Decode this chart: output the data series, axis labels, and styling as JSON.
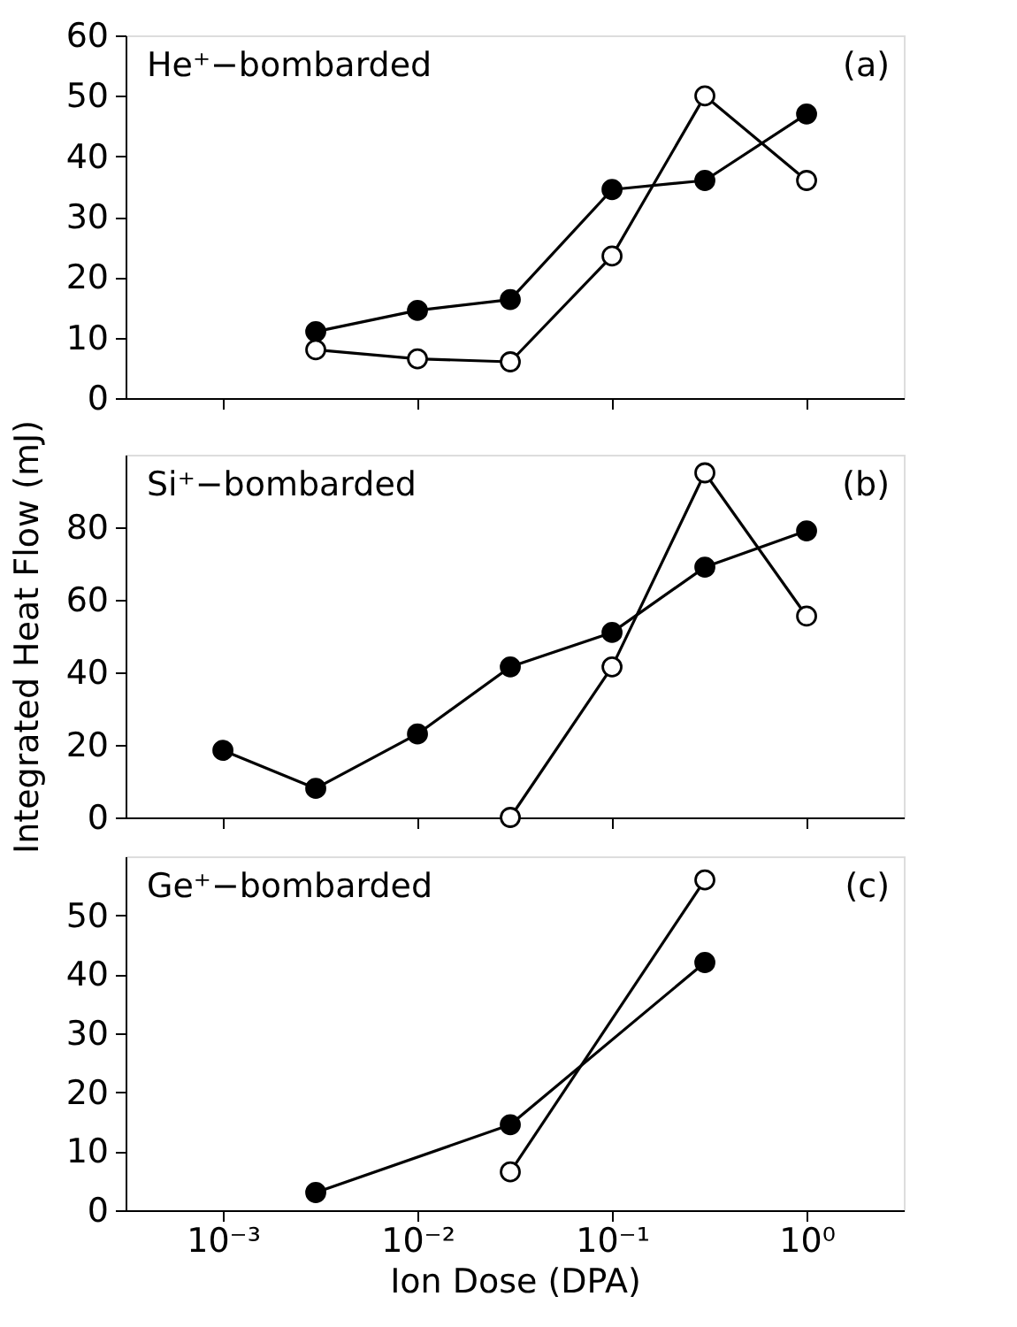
{
  "chart_data": [
    {
      "type": "line",
      "x": [
        0.003,
        0.01,
        0.03,
        0.1,
        0.3,
        1
      ],
      "log": "x",
      "marker": "circle",
      "line_style": "solid",
      "grid": false,
      "tick_labels": "y",
      "series": [
        {
          "color": "#000000",
          "values": [
            11,
            14.5,
            16.3,
            34.5,
            36,
            47
          ]
        },
        {
          "color": "#000000",
          "values": [
            8,
            6.5,
            6,
            23.5,
            50,
            36
          ]
        }
      ],
      "xlim": [
        0.000316,
        3.16
      ],
      "xticks": [
        {
          "value": 0.001,
          "label": null
        },
        {
          "value": 0.01,
          "label": null
        },
        {
          "value": 0.1,
          "label": null
        },
        {
          "value": 1,
          "label": null
        }
      ],
      "ylim": [
        0,
        60
      ],
      "yticks": [
        0,
        10,
        20,
        30,
        40,
        50,
        60
      ],
      "annotations": [
        "He⁺−bombarded",
        "(a)"
      ]
    },
    {
      "type": "line",
      "log": "x",
      "marker": "circle",
      "line_style": "solid",
      "grid": false,
      "tick_labels": "y",
      "ylabel": "Integrated Heat Flow (mJ)",
      "series": [
        {
          "color": "#000000",
          "x": [
            0.001,
            0.003,
            0.01,
            0.03,
            0.1,
            0.3,
            1
          ],
          "values": [
            18.5,
            8,
            23,
            41.5,
            51,
            69,
            79
          ]
        },
        {
          "color": "#000000",
          "x": [
            0.03,
            0.1,
            0.3,
            1
          ],
          "values": [
            0,
            41.5,
            95,
            55.5
          ]
        }
      ],
      "xlim": [
        0.000316,
        3.16
      ],
      "xticks": [
        {
          "value": 0.001,
          "label": null
        },
        {
          "value": 0.01,
          "label": null
        },
        {
          "value": 0.1,
          "label": null
        },
        {
          "value": 1,
          "label": null
        }
      ],
      "ylim": [
        0,
        100
      ],
      "yticks": [
        0,
        20,
        40,
        60,
        80
      ],
      "annotations": [
        "Si⁺−bombarded",
        "(b)"
      ]
    },
    {
      "type": "line",
      "log": "x",
      "marker": "circle",
      "line_style": "solid",
      "grid": false,
      "xlabel": "Ion Dose (DPA)",
      "series": [
        {
          "color": "#000000",
          "x": [
            0.003,
            0.03,
            0.3
          ],
          "values": [
            3,
            14.5,
            42
          ]
        },
        {
          "color": "#000000",
          "x": [
            0.03,
            0.3
          ],
          "values": [
            6.5,
            56
          ]
        }
      ],
      "xlim": [
        0.000316,
        3.16
      ],
      "xticks": [
        {
          "value": 0.001,
          "label": "10⁻³"
        },
        {
          "value": 0.01,
          "label": "10⁻²"
        },
        {
          "value": 0.1,
          "label": "10⁻¹"
        },
        {
          "value": 1,
          "label": "10⁰"
        }
      ],
      "ylim": [
        0,
        60
      ],
      "yticks": [
        0,
        10,
        20,
        30,
        40,
        50
      ],
      "annotations": [
        "Ge⁺−bombarded",
        "(c)"
      ]
    }
  ]
}
